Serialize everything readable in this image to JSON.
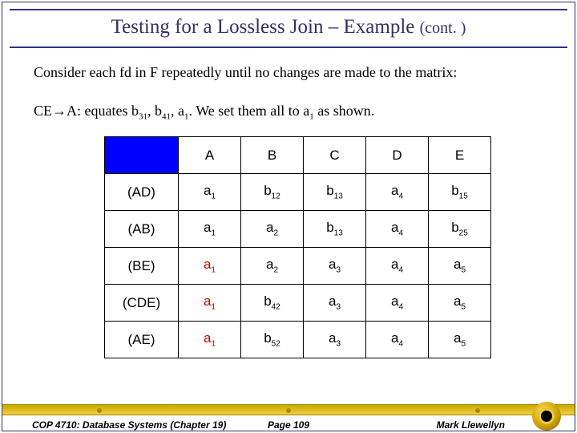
{
  "title": {
    "main": "Testing for a Lossless Join – Example ",
    "cont": "(cont. )"
  },
  "text": {
    "line1": "Consider each fd in F repeatedly until no changes are made to the matrix:",
    "line2_pre": "CE",
    "line2_arrow": "→",
    "line2_mid1": "A: equates b",
    "line2_s1": "31",
    "line2_mid2": ", b",
    "line2_s2": "41",
    "line2_mid3": ", a",
    "line2_s3": "1",
    "line2_mid4": ". ",
    "line2_mid4b": " We set them all to a",
    "line2_s4": "1",
    "line2_end": " as shown."
  },
  "matrix": {
    "columns": [
      "A",
      "B",
      "C",
      "D",
      "E"
    ],
    "rows": [
      {
        "hdr": "(AD)",
        "cells": [
          {
            "m": "a",
            "s": "1",
            "red": false
          },
          {
            "m": "b",
            "s": "12",
            "red": false
          },
          {
            "m": "b",
            "s": "13",
            "red": false
          },
          {
            "m": "a",
            "s": "4",
            "red": false
          },
          {
            "m": "b",
            "s": "15",
            "red": false
          }
        ]
      },
      {
        "hdr": "(AB)",
        "cells": [
          {
            "m": "a",
            "s": "1",
            "red": false
          },
          {
            "m": "a",
            "s": "2",
            "red": false
          },
          {
            "m": "b",
            "s": "13",
            "red": false
          },
          {
            "m": "a",
            "s": "4",
            "red": false
          },
          {
            "m": "b",
            "s": "25",
            "red": false
          }
        ]
      },
      {
        "hdr": "(BE)",
        "cells": [
          {
            "m": "a",
            "s": "1",
            "red": true
          },
          {
            "m": "a",
            "s": "2",
            "red": false
          },
          {
            "m": "a",
            "s": "3",
            "red": false
          },
          {
            "m": "a",
            "s": "4",
            "red": false
          },
          {
            "m": "a",
            "s": "5",
            "red": false
          }
        ]
      },
      {
        "hdr": "(CDE)",
        "cells": [
          {
            "m": "a",
            "s": "1",
            "red": true
          },
          {
            "m": "b",
            "s": "42",
            "red": false
          },
          {
            "m": "a",
            "s": "3",
            "red": false
          },
          {
            "m": "a",
            "s": "4",
            "red": false
          },
          {
            "m": "a",
            "s": "5",
            "red": false
          }
        ]
      },
      {
        "hdr": "(AE)",
        "cells": [
          {
            "m": "a",
            "s": "1",
            "red": true
          },
          {
            "m": "b",
            "s": "52",
            "red": false
          },
          {
            "m": "a",
            "s": "3",
            "red": false
          },
          {
            "m": "a",
            "s": "4",
            "red": false
          },
          {
            "m": "a",
            "s": "5",
            "red": false
          }
        ]
      }
    ]
  },
  "footer": {
    "left": "COP 4710: Database Systems  (Chapter 19)",
    "center": "Page 109",
    "right": "Mark Llewellyn"
  },
  "colors": {
    "title": "#332f66",
    "rule": "#303090",
    "corner_bg": "#0000ff",
    "red_cell": "#cc0000",
    "footer_bar_top": "#c9a800",
    "footer_bar_bottom": "#f0d040"
  }
}
